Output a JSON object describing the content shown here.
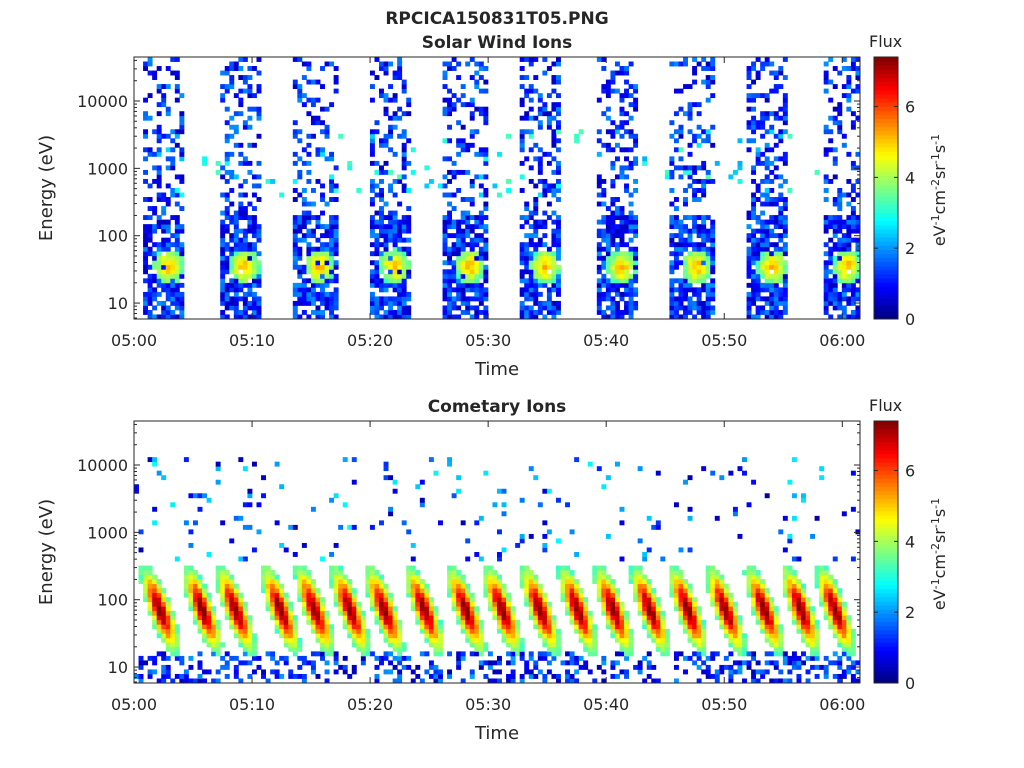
{
  "figure": {
    "title": "RPCICA150831T05.PNG"
  },
  "chart_data": [
    {
      "type": "heatmap",
      "title": "Solar Wind Ions",
      "xlabel": "Time",
      "ylabel": "Energy (eV)",
      "x_ticks": [
        "05:00",
        "05:10",
        "05:20",
        "05:30",
        "05:40",
        "05:50",
        "06:00"
      ],
      "x_range_minutes": [
        0,
        61.5
      ],
      "y_scale": "log",
      "y_ticks": [
        "10",
        "100",
        "1000",
        "10000"
      ],
      "y_range": [
        5.8,
        45000
      ],
      "colorbar": {
        "title": "Flux",
        "label": "eV-1cm-2sr-1s-1",
        "ticks": [
          "0",
          "2",
          "4",
          "6"
        ],
        "range": [
          0,
          7.4
        ],
        "colormap": "jet"
      },
      "sweep_start_minutes": [
        0.8,
        7.2,
        13.6,
        19.9,
        26.3,
        32.7,
        39.1,
        45.5,
        51.9,
        58.3
      ],
      "sweep_width_minutes": 3.6,
      "description_peak_flux": 4.5,
      "peak_energy_eV": 35
    },
    {
      "type": "heatmap",
      "title": "Cometary Ions",
      "xlabel": "Time",
      "ylabel": "Energy (eV)",
      "x_ticks": [
        "05:00",
        "05:10",
        "05:20",
        "05:30",
        "05:40",
        "05:50",
        "06:00"
      ],
      "x_range_minutes": [
        0,
        61.5
      ],
      "y_scale": "log",
      "y_ticks": [
        "10",
        "100",
        "1000",
        "10000"
      ],
      "y_range": [
        5.8,
        45000
      ],
      "colorbar": {
        "title": "Flux",
        "label": "eV-1cm-2sr-1s-1",
        "ticks": [
          "0",
          "2",
          "4",
          "6"
        ],
        "range": [
          0,
          7.4
        ],
        "colormap": "jet"
      },
      "burst_center_minutes": [
        2.2,
        5.8,
        8.6,
        12.4,
        15.3,
        18.3,
        21.2,
        24.6,
        28.1,
        31.2,
        34.4,
        37.6,
        40.6,
        43.7,
        46.9,
        50.1,
        53.4,
        56.5,
        59.4
      ],
      "peak_flux": 7.0,
      "peak_energy_eV": 40
    }
  ]
}
